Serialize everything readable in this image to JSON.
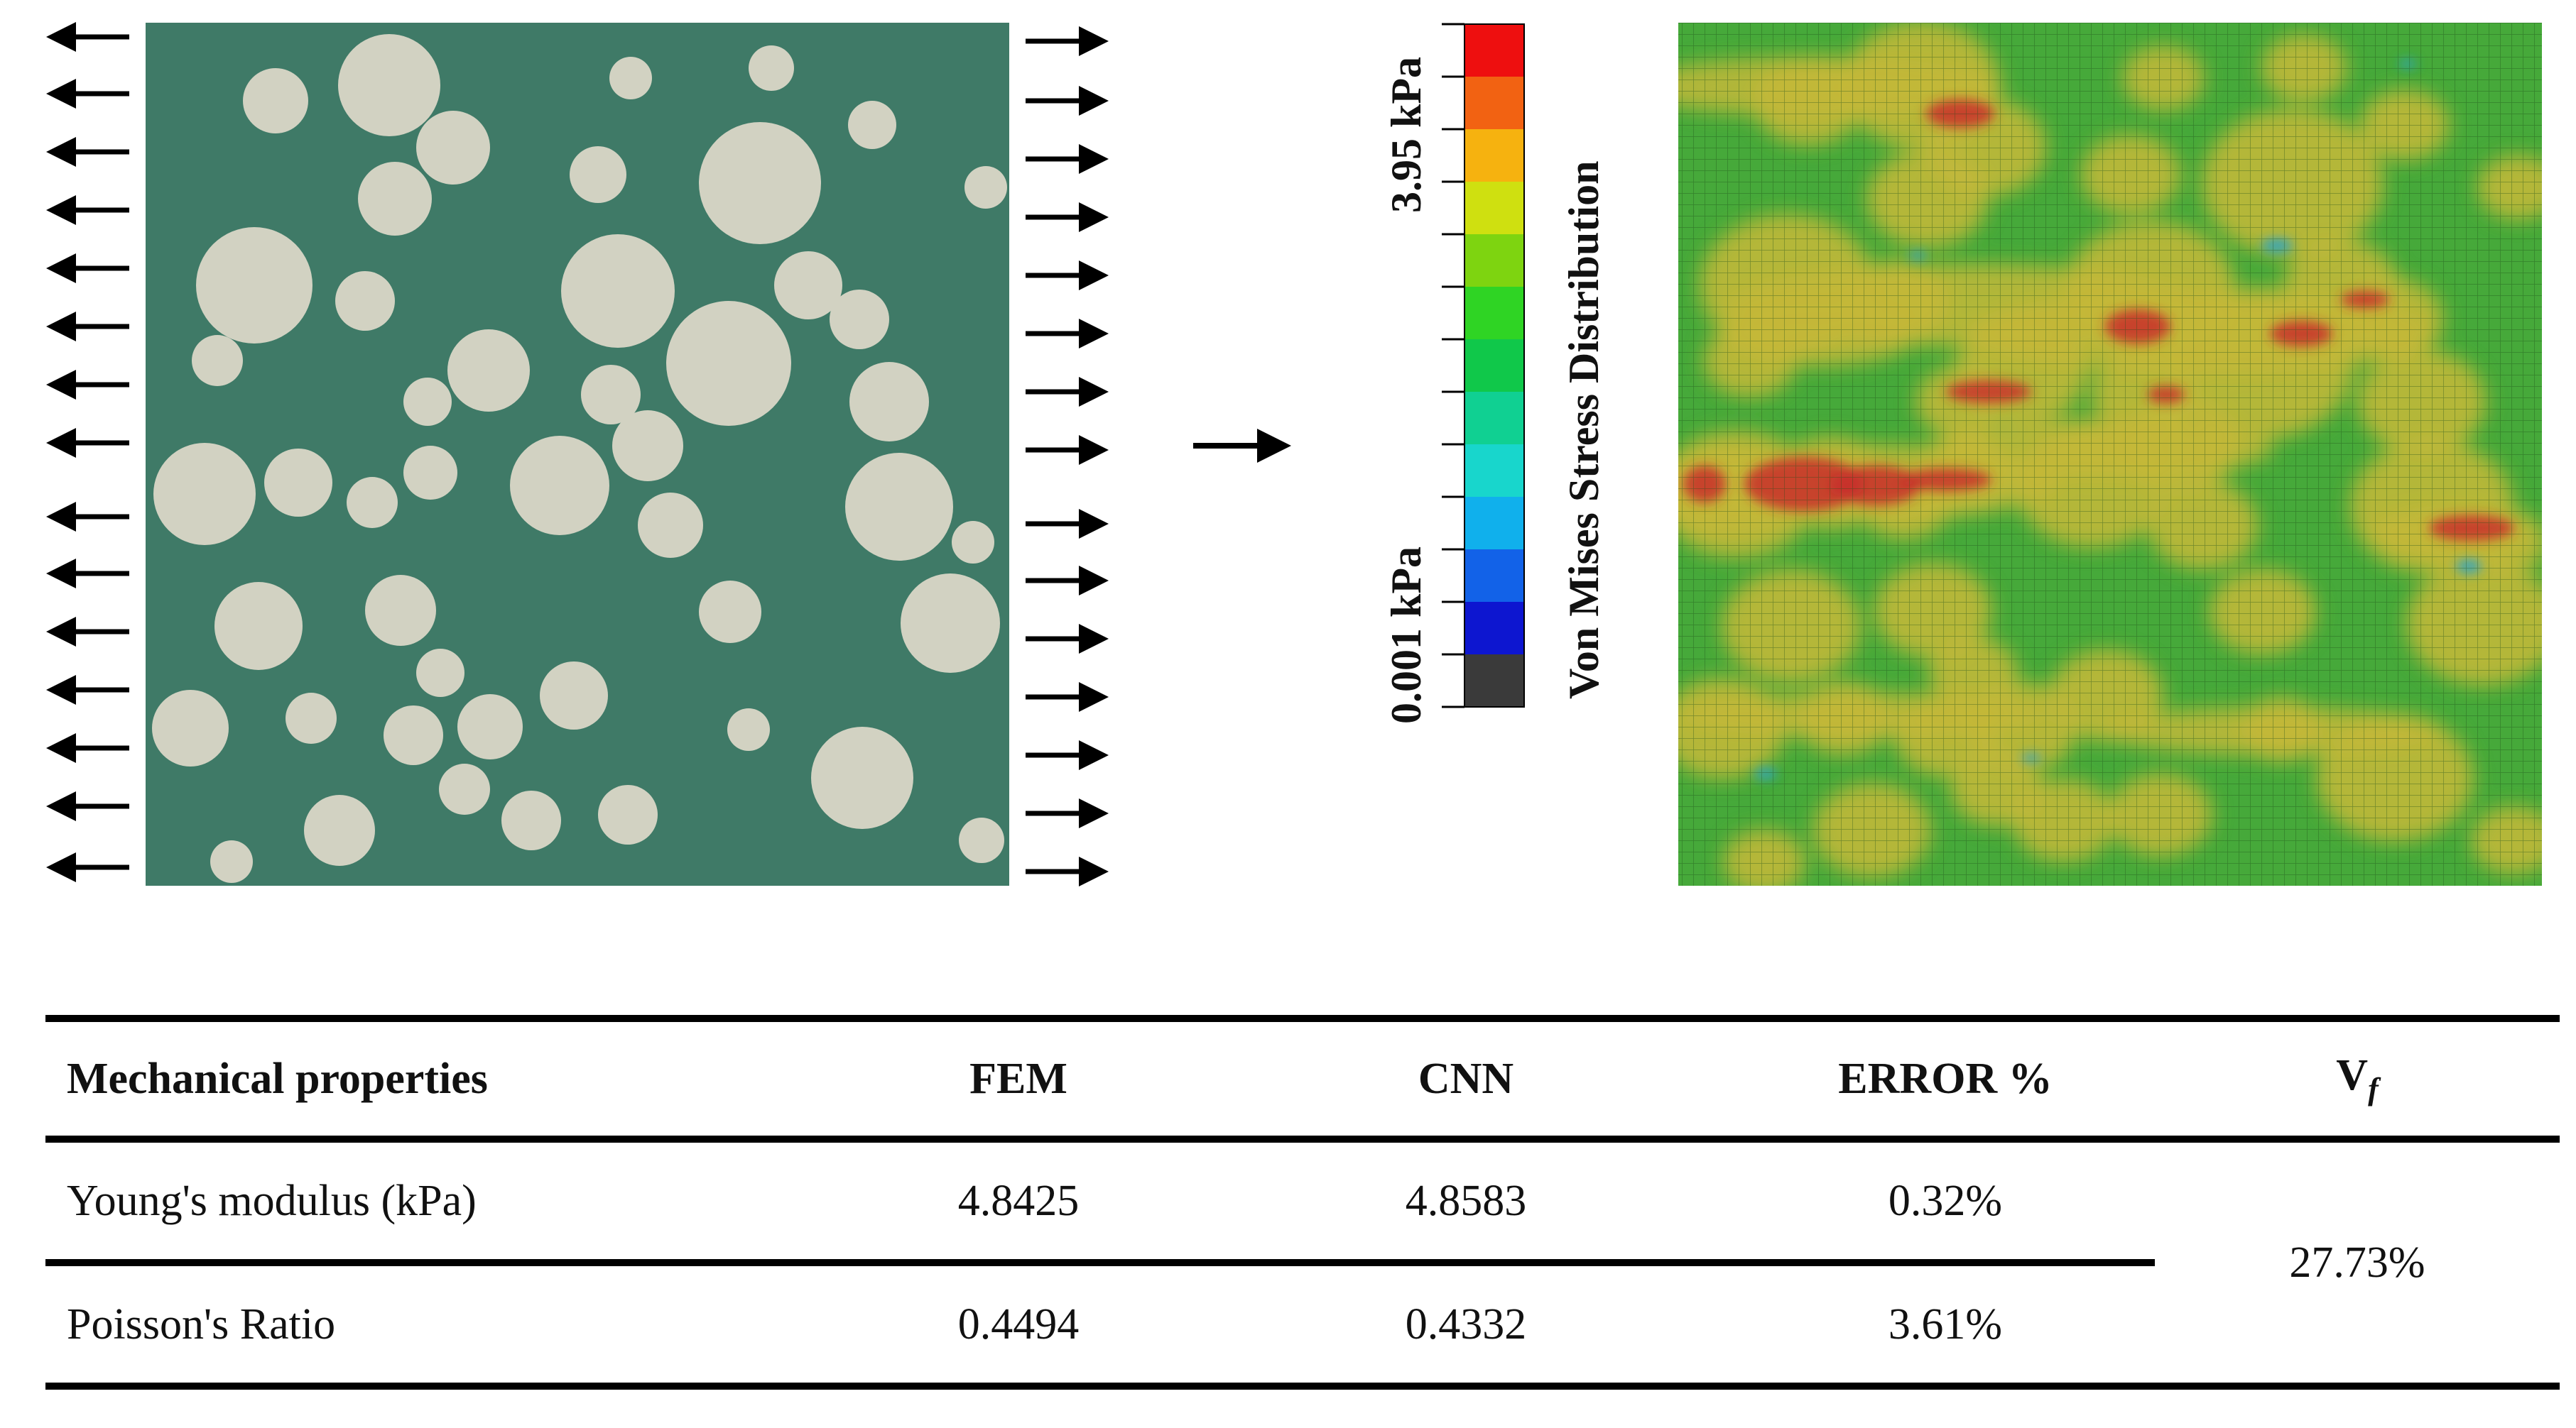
{
  "figure": {
    "colorbar": {
      "title": "Von Mises Stress Distribution",
      "max_label": "3.95 kPa",
      "min_label": "0.001 kPa",
      "colors": [
        "#ee0f0f",
        "#f26212",
        "#f6b20f",
        "#cfe010",
        "#7ed410",
        "#2fd424",
        "#10c84a",
        "#10d092",
        "#18d6cc",
        "#10b0ec",
        "#1262e8",
        "#0d16d0",
        "#3a3a3a"
      ]
    },
    "microstructure_colors": {
      "matrix": "#3f7a67",
      "fiber": "#d2d2c2"
    },
    "stress_map_colors": {
      "base": "#46a93a",
      "medium": "#c4b83a",
      "high": "#c8302a",
      "low": "#2aa4c8"
    },
    "fiber_volume_fraction_note": "Vf"
  },
  "table": {
    "headers": [
      "Mechanical properties",
      "FEM",
      "CNN",
      "ERROR %"
    ],
    "vf_header_main": "V",
    "vf_header_sub": "f",
    "rows": [
      {
        "property": "Young's modulus (kPa)",
        "fem": "4.8425",
        "cnn": "4.8583",
        "error": "0.32%"
      },
      {
        "property": "Poisson's Ratio",
        "fem": "0.4494",
        "cnn": "0.4332",
        "error": "3.61%"
      }
    ],
    "vf_value": "27.73%"
  }
}
